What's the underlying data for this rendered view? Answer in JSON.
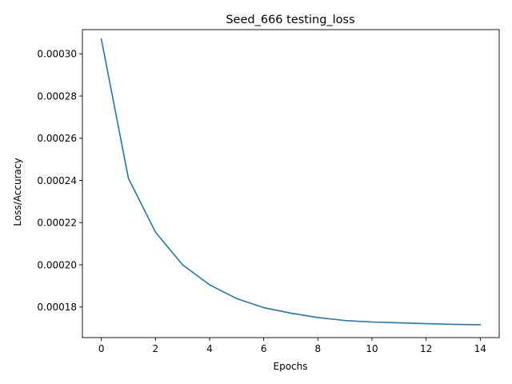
{
  "chart_data": {
    "type": "line",
    "title": "Seed_666 testing_loss",
    "xlabel": "Epochs",
    "ylabel": "Loss/Accuracy",
    "xlim": [
      -0.7,
      14.7
    ],
    "ylim": [
      0.0001655,
      0.0003115
    ],
    "x_ticks": [
      0,
      2,
      4,
      6,
      8,
      10,
      12,
      14
    ],
    "x_tick_labels": [
      "0",
      "2",
      "4",
      "6",
      "8",
      "10",
      "12",
      "14"
    ],
    "y_ticks": [
      0.00018,
      0.0002,
      0.00022,
      0.00024,
      0.00026,
      0.00028,
      0.0003
    ],
    "y_tick_labels": [
      "0.00018",
      "0.00020",
      "0.00022",
      "0.00024",
      "0.00026",
      "0.00028",
      "0.00030"
    ],
    "grid": false,
    "series": [
      {
        "color": "#1f77b4",
        "x": [
          0,
          1,
          2,
          3,
          4,
          5,
          6,
          7,
          8,
          9,
          10,
          11,
          12,
          13,
          14
        ],
        "y": [
          0.000307,
          0.000241,
          0.0002155,
          0.0002,
          0.0001905,
          0.000184,
          0.0001797,
          0.0001771,
          0.000175,
          0.0001736,
          0.0001729,
          0.0001725,
          0.0001721,
          0.0001718,
          0.0001716
        ]
      }
    ]
  }
}
